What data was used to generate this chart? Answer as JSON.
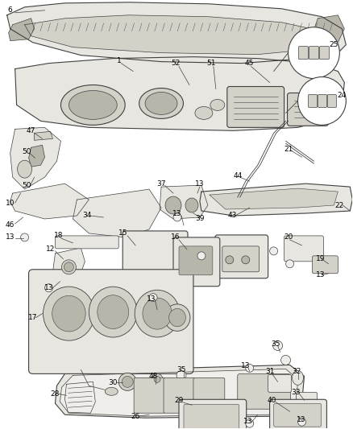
{
  "bg_color": "#ffffff",
  "line_color": "#404040",
  "fill_light": "#e8e6e0",
  "fill_med": "#d4d1c8",
  "fill_dark": "#b8b5aa",
  "fill_very_light": "#f0eeea",
  "fig_width": 4.38,
  "fig_height": 5.33,
  "dpi": 100,
  "label_fontsize": 6.5,
  "label_color": "#000000"
}
